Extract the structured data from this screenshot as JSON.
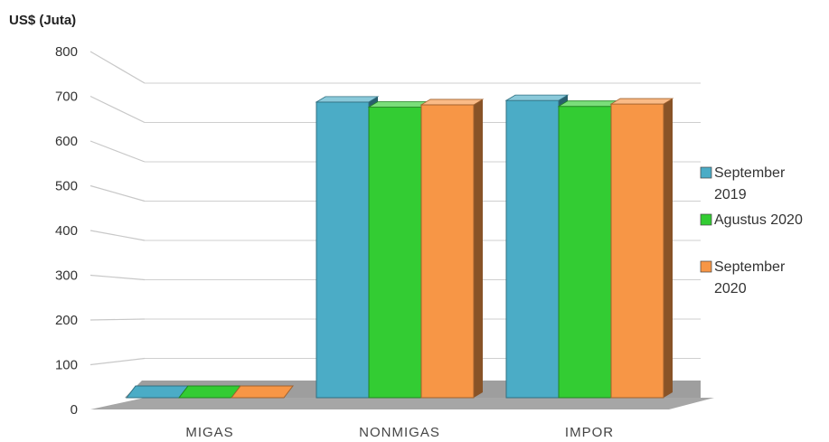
{
  "chart_data": {
    "type": "bar",
    "ylabel": "US$ (Juta)",
    "ylim": [
      0,
      800
    ],
    "yticks": [
      "0",
      "100",
      "200",
      "300",
      "400",
      "500",
      "600",
      "700",
      "800"
    ],
    "categories": [
      "MIGAS",
      "NONMIGAS",
      "IMPOR"
    ],
    "series": [
      {
        "name": "September 2019",
        "name_lines": [
          "September",
          "2019"
        ],
        "color": "#4BACC6",
        "values": [
          3,
          752,
          756
        ]
      },
      {
        "name": "Agustus 2020",
        "name_lines": [
          "Agustus 2020"
        ],
        "color": "#33CC33",
        "values": [
          2,
          739,
          741
        ]
      },
      {
        "name": "September 2020",
        "name_lines": [
          "September",
          "2020"
        ],
        "color": "#F79646",
        "values": [
          3,
          745,
          747
        ]
      }
    ],
    "grid": true,
    "legend_position": "right",
    "three_d": true
  }
}
